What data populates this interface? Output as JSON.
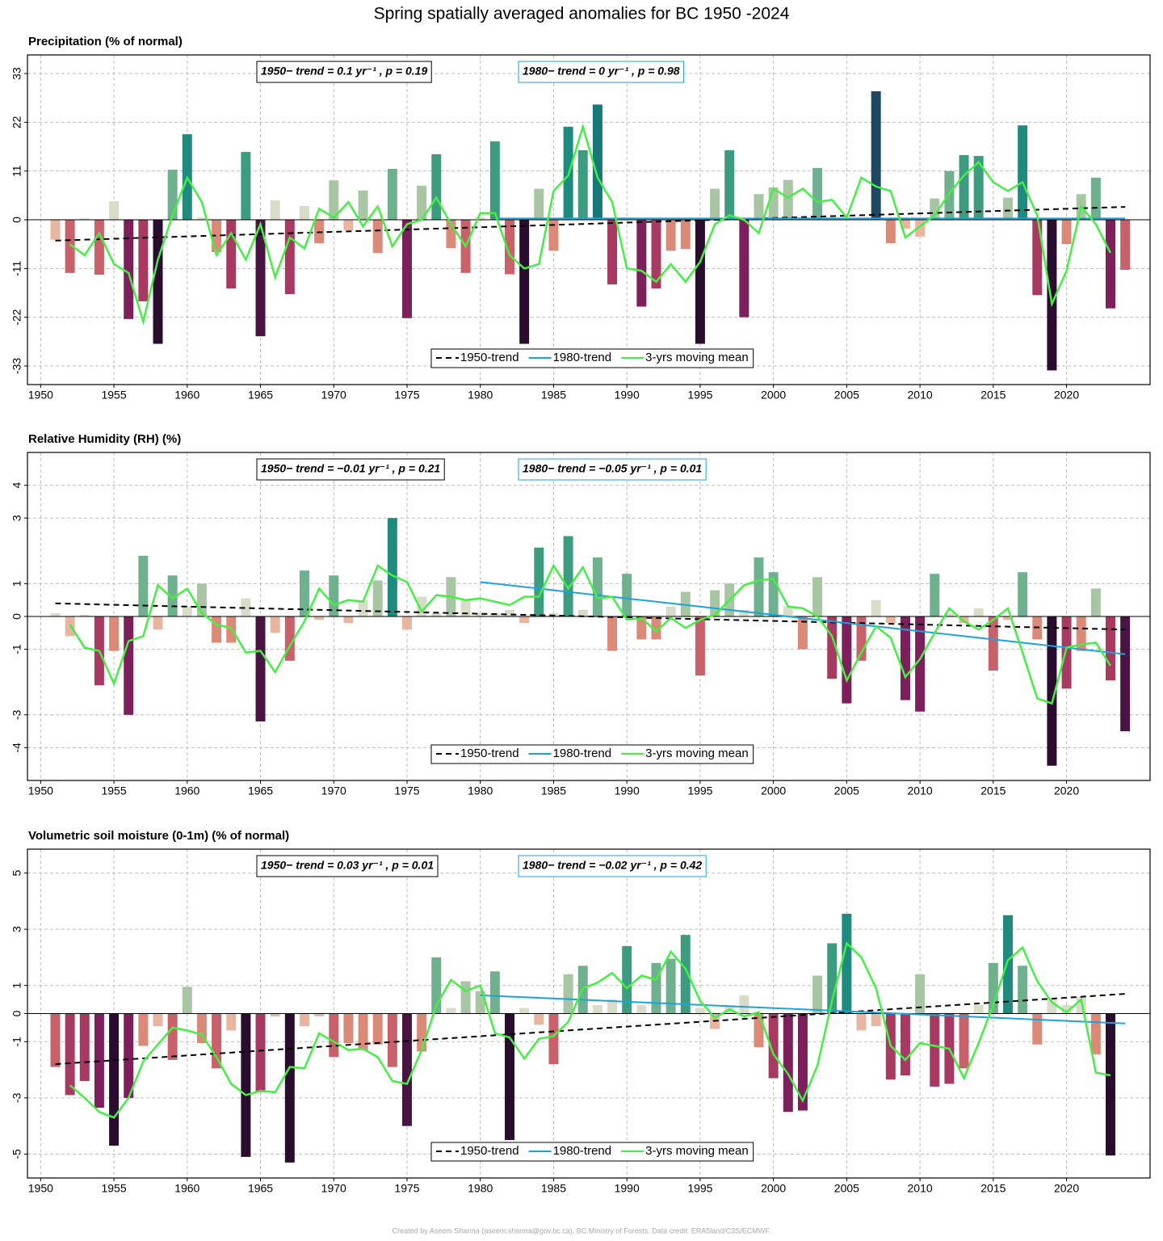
{
  "title": "Spring spatially averaged anomalies for BC 1950 -2024",
  "credit": "Created by Aseem Sharma (aseem.sharma@gov.bc.ca), BC Ministry of Forests. Data credit: ERA5land/C3S/ECMWF.",
  "bar_colors": {
    "negative": [
      "#e8b6a0",
      "#dc8a78",
      "#c8616a",
      "#a83a62",
      "#7c1f5a",
      "#4a1442",
      "#2a0d2e"
    ],
    "positive": [
      "#d9dcc8",
      "#a8c6a4",
      "#6fb08e",
      "#3d9c80",
      "#1f8a7e",
      "#167878",
      "#1e4862"
    ]
  },
  "chart_data": [
    {
      "type": "bar",
      "title": "Precipitation  (% of normal)",
      "x": [
        1951,
        1952,
        1953,
        1954,
        1955,
        1956,
        1957,
        1958,
        1959,
        1960,
        1961,
        1962,
        1963,
        1964,
        1965,
        1966,
        1967,
        1968,
        1969,
        1970,
        1971,
        1972,
        1973,
        1974,
        1975,
        1976,
        1977,
        1978,
        1979,
        1980,
        1981,
        1982,
        1983,
        1984,
        1985,
        1986,
        1987,
        1988,
        1989,
        1990,
        1991,
        1992,
        1993,
        1994,
        1995,
        1996,
        1997,
        1998,
        1999,
        2000,
        2001,
        2002,
        2003,
        2004,
        2005,
        2006,
        2007,
        2008,
        2009,
        2010,
        2011,
        2012,
        2013,
        2014,
        2015,
        2016,
        2017,
        2018,
        2019,
        2020,
        2021,
        2022,
        2023,
        2024
      ],
      "values": [
        -4.5,
        -12,
        0.3,
        -12.4,
        4.2,
        -22.4,
        -18.4,
        -28,
        11.3,
        19.3,
        0.5,
        -7.3,
        -15.5,
        15.3,
        -26.3,
        4.4,
        -16.8,
        3.1,
        -5.3,
        8.9,
        -2.4,
        6.6,
        -7.5,
        11.5,
        -22.2,
        7.7,
        14.8,
        -6.4,
        -12,
        0.5,
        17.7,
        -12.3,
        -28,
        7,
        -7,
        21,
        15.7,
        26,
        -14.6,
        0.5,
        -19.6,
        -15.5,
        -7,
        -6.6,
        -28,
        7,
        15.7,
        -22,
        5.8,
        7.3,
        9,
        0.5,
        11.7,
        0.5,
        0.3,
        0.5,
        29,
        -5.3,
        -2,
        -3.8,
        4.8,
        11,
        14.6,
        14.4,
        0.5,
        5,
        21.3,
        -17,
        -34,
        -5.5,
        5.8,
        9.5,
        -20,
        -11.3
      ],
      "series": [
        {
          "name": "1950-trend",
          "color": "#000000",
          "dashed": true,
          "x": [
            1951,
            2024
          ],
          "values": [
            -4.7,
            2.9
          ]
        },
        {
          "name": "1980-trend",
          "color": "#1ba3dd",
          "dashed": false,
          "x": [
            1981,
            2024
          ],
          "values": [
            0.3,
            0.3
          ]
        },
        {
          "name": "3-yrs moving mean",
          "color": "#44ee44",
          "dashed": false,
          "values": [
            null,
            -5.5,
            -8,
            -3,
            -10,
            -12,
            -23,
            -9,
            1,
            9.5,
            4,
            -8,
            -3,
            -9,
            -1,
            -13,
            -4,
            -6.5,
            2.5,
            0.5,
            4,
            -1.5,
            3,
            -6,
            -1,
            0,
            5,
            -1,
            -6,
            1.5,
            1.5,
            -8,
            -11,
            -10,
            6.5,
            10,
            21,
            9.5,
            4,
            -11,
            -11.5,
            -14,
            -10,
            -14,
            -9.5,
            -1,
            1,
            0,
            -3,
            7,
            5,
            7,
            4,
            4.5,
            0.5,
            9.5,
            7.5,
            6.5,
            -4,
            -1.5,
            1,
            6,
            10,
            13,
            8.5,
            6.5,
            8.5,
            1,
            -19,
            -11.5,
            3,
            -1,
            -7.5,
            null
          ]
        }
      ],
      "annotations": [
        {
          "text": "1950− trend = 0.1 yr⁻¹ , p = 0.19",
          "color": "#000000"
        },
        {
          "text": "1980− trend = 0 yr⁻¹ , p = 0.98",
          "color": "#1ba3dd"
        }
      ],
      "xlim": [
        1949.1,
        2025.7
      ],
      "xticks": [
        1950,
        1955,
        1960,
        1965,
        1970,
        1975,
        1980,
        1985,
        1990,
        1995,
        2000,
        2005,
        2010,
        2015,
        2020
      ],
      "ylim": [
        -37.2,
        37.2
      ],
      "yticks": [
        -33,
        -22,
        -11,
        0,
        11,
        22,
        33
      ],
      "grid": true,
      "legend": "bottom"
    },
    {
      "type": "bar",
      "title": "Relative Humidity (RH)  (%)",
      "x": [
        1951,
        1952,
        1953,
        1954,
        1955,
        1956,
        1957,
        1958,
        1959,
        1960,
        1961,
        1962,
        1963,
        1964,
        1965,
        1966,
        1967,
        1968,
        1969,
        1970,
        1971,
        1972,
        1973,
        1974,
        1975,
        1976,
        1977,
        1978,
        1979,
        1980,
        1981,
        1982,
        1983,
        1984,
        1985,
        1986,
        1987,
        1988,
        1989,
        1990,
        1991,
        1992,
        1993,
        1994,
        1995,
        1996,
        1997,
        1998,
        1999,
        2000,
        2001,
        2002,
        2003,
        2004,
        2005,
        2006,
        2007,
        2008,
        2009,
        2010,
        2011,
        2012,
        2013,
        2014,
        2015,
        2016,
        2017,
        2018,
        2019,
        2020,
        2021,
        2022,
        2023,
        2024
      ],
      "values": [
        0.1,
        -0.6,
        0.05,
        -2.1,
        -1.05,
        -3.0,
        1.85,
        -0.4,
        1.25,
        0.3,
        1.0,
        -0.8,
        -0.8,
        0.55,
        -3.2,
        -0.5,
        -1.35,
        1.4,
        -0.1,
        1.25,
        -0.2,
        0.5,
        1.1,
        3.0,
        -0.4,
        0.6,
        0.1,
        1.2,
        0.5,
        0.1,
        0.1,
        0.2,
        -0.2,
        2.1,
        0.1,
        2.45,
        0.2,
        1.8,
        -1.05,
        1.3,
        -0.7,
        -0.7,
        0.3,
        0.75,
        -1.8,
        0.8,
        1.0,
        0.2,
        1.8,
        1.35,
        0.3,
        -1.0,
        1.2,
        -1.9,
        -2.65,
        -1.35,
        0.5,
        -0.2,
        -2.55,
        -2.9,
        1.3,
        0.1,
        -0.2,
        0.25,
        -1.65,
        -0.1,
        1.35,
        -0.7,
        -4.55,
        -2.2,
        -1.05,
        0.85,
        -1.95,
        -3.5
      ],
      "series": [
        {
          "name": "1950-trend",
          "color": "#000000",
          "dashed": true,
          "x": [
            1951,
            2024
          ],
          "values": [
            0.4,
            -0.4
          ]
        },
        {
          "name": "1980-trend",
          "color": "#1ba3dd",
          "dashed": false,
          "x": [
            1980,
            2024
          ],
          "values": [
            1.05,
            -1.15
          ]
        },
        {
          "name": "3-yrs moving mean",
          "color": "#44ee44",
          "dashed": false,
          "values": [
            null,
            -0.25,
            -0.95,
            -1.05,
            -2.05,
            -0.75,
            -0.6,
            0.95,
            0.55,
            0.85,
            0.1,
            -0.25,
            -0.35,
            -1.1,
            -1.05,
            -1.7,
            -0.9,
            -0.15,
            0.85,
            0.35,
            0.5,
            0.45,
            1.55,
            1.25,
            1.05,
            0.15,
            0.65,
            0.6,
            0.5,
            0.55,
            0.45,
            0.35,
            0.6,
            0.6,
            1.55,
            0.85,
            1.5,
            0.55,
            0.6,
            -0.1,
            -0.05,
            -0.45,
            -0.05,
            -0.35,
            -0.1,
            0.05,
            0.5,
            0.95,
            1.1,
            1.15,
            0.3,
            0.25,
            0,
            -0.6,
            -1.95,
            -1.1,
            -0.3,
            -0.65,
            -1.85,
            -1.3,
            -0.5,
            0.25,
            -0.15,
            -0.4,
            -0.1,
            0.25,
            -1.1,
            -2.5,
            -2.65,
            -0.95,
            -0.85,
            -0.8,
            -1.5,
            null
          ]
        }
      ],
      "annotations": [
        {
          "text": "1950− trend = −0.01 yr⁻¹ , p = 0.21",
          "color": "#000000"
        },
        {
          "text": "1980− trend = −0.05 yr⁻¹ , p = 0.01",
          "color": "#1ba3dd"
        }
      ],
      "xlim": [
        1949.1,
        2025.7
      ],
      "xticks": [
        1950,
        1955,
        1960,
        1965,
        1970,
        1975,
        1980,
        1985,
        1990,
        1995,
        2000,
        2005,
        2010,
        2015,
        2020
      ],
      "ylim": [
        -5,
        5
      ],
      "yticks": [
        -4,
        -3,
        -1,
        0,
        1,
        3,
        4
      ],
      "grid": true,
      "legend": "bottom"
    },
    {
      "type": "bar",
      "title": "Volumetric soil moisture (0-1m)  (% of normal)",
      "x": [
        1951,
        1952,
        1953,
        1954,
        1955,
        1956,
        1957,
        1958,
        1959,
        1960,
        1961,
        1962,
        1963,
        1964,
        1965,
        1966,
        1967,
        1968,
        1969,
        1970,
        1971,
        1972,
        1973,
        1974,
        1975,
        1976,
        1977,
        1978,
        1979,
        1980,
        1981,
        1982,
        1983,
        1984,
        1985,
        1986,
        1987,
        1988,
        1989,
        1990,
        1991,
        1992,
        1993,
        1994,
        1995,
        1996,
        1997,
        1998,
        1999,
        2000,
        2001,
        2002,
        2003,
        2004,
        2005,
        2006,
        2007,
        2008,
        2009,
        2010,
        2011,
        2012,
        2013,
        2014,
        2015,
        2016,
        2017,
        2018,
        2019,
        2020,
        2021,
        2022,
        2023,
        2024
      ],
      "values": [
        -1.9,
        -2.9,
        -2.4,
        -3.35,
        -4.7,
        -3.0,
        -1.15,
        -0.45,
        -1.65,
        0.95,
        -1.05,
        -1.95,
        -0.6,
        -5.1,
        -2.8,
        -0.1,
        -5.3,
        -0.45,
        -0.1,
        -1.55,
        -1.05,
        -1.3,
        -1.1,
        -1.9,
        -4.0,
        -1.35,
        2.0,
        0.2,
        1.15,
        0.8,
        1.5,
        -4.5,
        0.2,
        -0.4,
        -1.8,
        1.4,
        1.7,
        0.3,
        0.5,
        2.4,
        0.3,
        1.8,
        1.95,
        2.8,
        0.2,
        -0.55,
        0.3,
        0.65,
        -1.2,
        -2.3,
        -3.5,
        -3.45,
        1.35,
        2.5,
        3.55,
        -0.6,
        -0.45,
        -2.35,
        -2.2,
        1.4,
        -2.6,
        -2.5,
        -1.95,
        0.3,
        1.8,
        3.5,
        1.7,
        -1.1,
        0.5,
        0.3,
        0.6,
        -1.45,
        -5.05,
        null
      ],
      "series": [
        {
          "name": "1950-trend",
          "color": "#000000",
          "dashed": true,
          "x": [
            1951,
            2024
          ],
          "values": [
            -1.8,
            0.7
          ]
        },
        {
          "name": "1980-trend",
          "color": "#1ba3dd",
          "dashed": false,
          "x": [
            1980,
            2024
          ],
          "values": [
            0.65,
            -0.35
          ]
        },
        {
          "name": "3-yrs moving mean",
          "color": "#44ee44",
          "dashed": false,
          "values": [
            null,
            -2.55,
            -3.0,
            -3.5,
            -3.7,
            -3.0,
            -1.7,
            -1.1,
            -0.5,
            -0.6,
            -0.75,
            -1.55,
            -2.5,
            -2.9,
            -2.75,
            -2.8,
            -1.9,
            -1.95,
            -0.7,
            -1.0,
            -1.3,
            -1.25,
            -1.55,
            -2.4,
            -2.5,
            -1.3,
            0.3,
            1.2,
            0.8,
            1.0,
            -0.7,
            -0.85,
            -1.6,
            -0.9,
            -0.8,
            -0.3,
            0.9,
            1.1,
            1.45,
            0.9,
            1.35,
            1.2,
            2.2,
            1.6,
            0.45,
            -0.15,
            0.15,
            -0.1,
            0.05,
            -1.45,
            -2.15,
            -3.1,
            -1.85,
            0.45,
            2.5,
            2.0,
            0.9,
            -1.15,
            -1.65,
            -1.05,
            -1.15,
            -1.25,
            -2.3,
            -1.05,
            0.3,
            1.9,
            2.35,
            1.15,
            0.4,
            0.05,
            0.5,
            -2.1,
            -2.2,
            null
          ]
        }
      ],
      "annotations": [
        {
          "text": "1950− trend = 0.03 yr⁻¹ , p = 0.01",
          "color": "#000000"
        },
        {
          "text": "1980− trend = −0.02 yr⁻¹ , p = 0.42",
          "color": "#1ba3dd"
        }
      ],
      "xlim": [
        1949.1,
        2025.7
      ],
      "xticks": [
        1950,
        1955,
        1960,
        1965,
        1970,
        1975,
        1980,
        1985,
        1990,
        1995,
        2000,
        2005,
        2010,
        2015,
        2020
      ],
      "ylim": [
        -5.85,
        5.85
      ],
      "yticks": [
        -5,
        -3,
        -1,
        0,
        1,
        3,
        5
      ],
      "grid": true,
      "legend": "bottom"
    }
  ]
}
